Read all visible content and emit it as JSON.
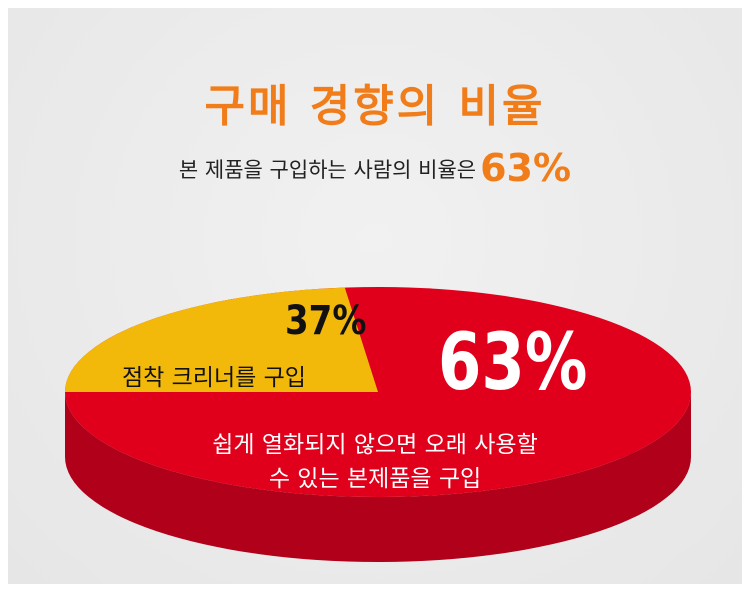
{
  "title": "구매 경향의 비율",
  "subtitle": {
    "text": "본 제품을 구입하는 사람의 비율은",
    "highlight": "63%"
  },
  "colors": {
    "accent": "#f07d1a",
    "slice_main": "#e0001b",
    "slice_main_side": "#b0001a",
    "slice_other": "#f3b90a"
  },
  "chart_data": {
    "type": "pie",
    "style": "3d",
    "slices": [
      {
        "label": "점착 크리너를 구입",
        "value": 37,
        "value_label": "37%",
        "color": "#f3b90a"
      },
      {
        "label_lines": [
          "쉽게 열화되지 않으면 오래 사용할",
          "수 있는 본제품을 구입"
        ],
        "value": 63,
        "value_label": "63%",
        "color": "#e0001b"
      }
    ]
  }
}
